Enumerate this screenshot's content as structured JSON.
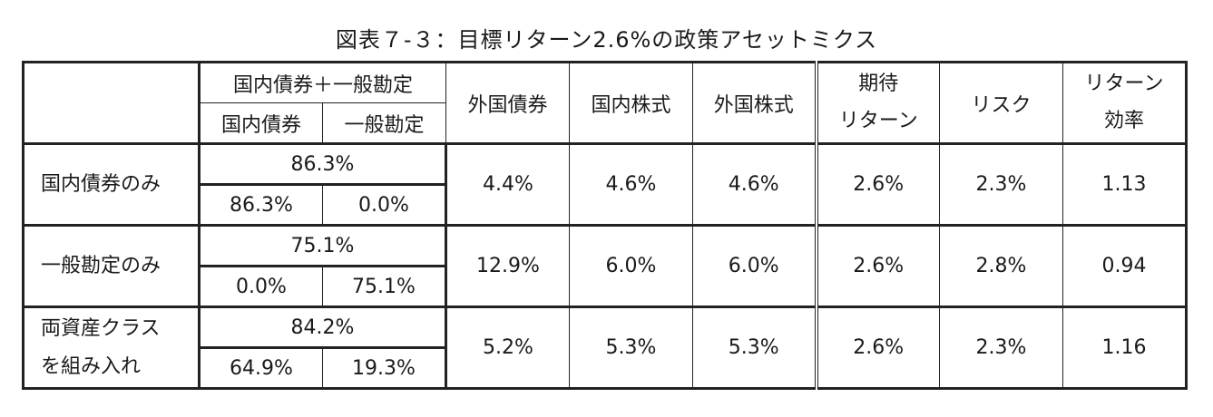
{
  "title": "図表７-３：目標リターン2.6%の政策アセットミクス",
  "header": {
    "bonds_group": "国内債券＋一般勘定",
    "domestic_bonds": "国内債券",
    "general_account": "一般勘定",
    "foreign_bonds": "外国債券",
    "domestic_stocks": "国内株式",
    "foreign_stocks": "外国株式",
    "expected_return_1": "期待",
    "expected_return_2": "リターン",
    "risk": "リスク",
    "return_efficiency_1": "リターン",
    "return_efficiency_2": "効率"
  },
  "rows": [
    {
      "label_1": "国内債券のみ",
      "label_2": "",
      "bonds_total": "86.3%",
      "domestic_bonds": "86.3%",
      "general_account": "0.0%",
      "foreign_bonds": "4.4%",
      "domestic_stocks": "4.6%",
      "foreign_stocks": "4.6%",
      "expected_return": "2.6%",
      "risk": "2.3%",
      "return_efficiency": "1.13"
    },
    {
      "label_1": "一般勘定のみ",
      "label_2": "",
      "bonds_total": "75.1%",
      "domestic_bonds": "0.0%",
      "general_account": "75.1%",
      "foreign_bonds": "12.9%",
      "domestic_stocks": "6.0%",
      "foreign_stocks": "6.0%",
      "expected_return": "2.6%",
      "risk": "2.8%",
      "return_efficiency": "0.94"
    },
    {
      "label_1": "両資産クラス",
      "label_2": "を組み入れ",
      "bonds_total": "84.2%",
      "domestic_bonds": "64.9%",
      "general_account": "19.3%",
      "foreign_bonds": "5.2%",
      "domestic_stocks": "5.3%",
      "foreign_stocks": "5.3%",
      "expected_return": "2.6%",
      "risk": "2.3%",
      "return_efficiency": "1.16"
    }
  ]
}
